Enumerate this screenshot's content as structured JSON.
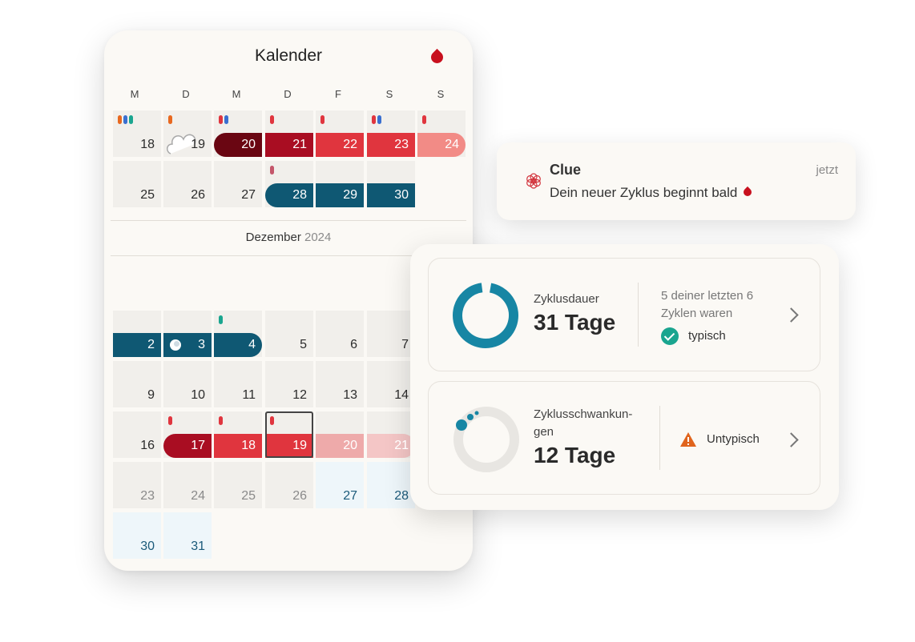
{
  "calendar": {
    "title": "Kalender",
    "weekdays": [
      "M",
      "D",
      "M",
      "D",
      "F",
      "S",
      "S"
    ],
    "month_label": "Dezember",
    "month_year": "2024",
    "row1": [
      "18",
      "19",
      "20",
      "21",
      "22",
      "23",
      "24"
    ],
    "row2": [
      "25",
      "26",
      "27",
      "28",
      "29",
      "30"
    ],
    "dec_row1": [
      "2",
      "3",
      "4",
      "5",
      "6",
      "7"
    ],
    "dec_row2": [
      "9",
      "10",
      "11",
      "12",
      "13",
      "14"
    ],
    "dec_row3": [
      "16",
      "17",
      "18",
      "19",
      "20",
      "21"
    ],
    "dec_row4": [
      "23",
      "24",
      "25",
      "26",
      "27",
      "28"
    ],
    "dec_row5": [
      "30",
      "31"
    ]
  },
  "notification": {
    "app": "Clue",
    "time": "jetzt",
    "message": "Dein neuer Zyklus beginnt bald"
  },
  "stats": {
    "cycle_length": {
      "label": "Zyklusdauer",
      "value": "31 Tage",
      "note": "5 deiner letzten 6 Zyklen waren",
      "status": "typisch",
      "ring_fill": 0.95
    },
    "cycle_variation": {
      "label": "Zyklusschwankun-gen",
      "value": "12 Tage",
      "status": "Untypisch"
    }
  },
  "colors": {
    "bg": "#fbf9f5",
    "period_dark": "#6a0612",
    "period_med": "#a90d22",
    "period": "#e0353e",
    "period_light": "#f28b86",
    "period_pale": "#eeaaaa",
    "fertile": "#0f5873",
    "ring": "#1786a4",
    "check": "#1aa58f",
    "warn": "#e0641d"
  },
  "icons": [
    "blood-drop-icon",
    "cloud-icon",
    "moon-icon",
    "clue-flower-icon",
    "check-icon",
    "warning-icon",
    "chevron-right-icon"
  ]
}
